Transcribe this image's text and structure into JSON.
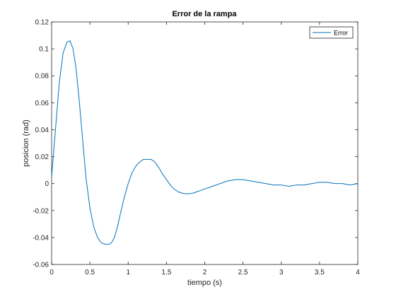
{
  "chart_data": {
    "type": "line",
    "title": "Error de la rampa",
    "xlabel": "tiempo (s)",
    "ylabel": "posicion (rad)",
    "xlim": [
      0,
      4
    ],
    "ylim": [
      -0.06,
      0.12
    ],
    "x_ticks": [
      0,
      0.5,
      1,
      1.5,
      2,
      2.5,
      3,
      3.5,
      4
    ],
    "x_tick_labels": [
      "0",
      "0.5",
      "1",
      "1.5",
      "2",
      "2.5",
      "3",
      "3.5",
      "4"
    ],
    "y_ticks": [
      -0.06,
      -0.04,
      -0.02,
      0,
      0.02,
      0.04,
      0.06,
      0.08,
      0.1,
      0.12
    ],
    "y_tick_labels": [
      "-0.06",
      "-0.04",
      "-0.02",
      "0",
      "0.02",
      "0.04",
      "0.06",
      "0.08",
      "0.1",
      "0.12"
    ],
    "grid": false,
    "legend_position": "top-right",
    "series": [
      {
        "name": "Error",
        "color": "#0072bd",
        "x": [
          0,
          0.05,
          0.1,
          0.15,
          0.2,
          0.24,
          0.28,
          0.32,
          0.36,
          0.4,
          0.45,
          0.5,
          0.55,
          0.6,
          0.65,
          0.7,
          0.75,
          0.78,
          0.82,
          0.86,
          0.9,
          0.95,
          1.0,
          1.05,
          1.1,
          1.15,
          1.2,
          1.25,
          1.3,
          1.35,
          1.4,
          1.45,
          1.5,
          1.55,
          1.6,
          1.65,
          1.7,
          1.75,
          1.8,
          1.85,
          1.9,
          1.95,
          2.0,
          2.1,
          2.2,
          2.3,
          2.4,
          2.5,
          2.6,
          2.7,
          2.8,
          2.9,
          3.0,
          3.1,
          3.2,
          3.3,
          3.4,
          3.5,
          3.6,
          3.7,
          3.8,
          3.9,
          4.0
        ],
        "y": [
          0.005,
          0.04,
          0.075,
          0.097,
          0.105,
          0.106,
          0.1,
          0.085,
          0.062,
          0.036,
          0.004,
          -0.018,
          -0.032,
          -0.04,
          -0.044,
          -0.045,
          -0.045,
          -0.044,
          -0.04,
          -0.032,
          -0.022,
          -0.01,
          0.0,
          0.008,
          0.013,
          0.016,
          0.018,
          0.018,
          0.018,
          0.016,
          0.012,
          0.007,
          0.003,
          -0.001,
          -0.004,
          -0.006,
          -0.007,
          -0.0075,
          -0.0075,
          -0.007,
          -0.006,
          -0.005,
          -0.004,
          -0.002,
          0.0,
          0.002,
          0.003,
          0.003,
          0.002,
          0.001,
          0.0,
          -0.001,
          -0.001,
          -0.002,
          -0.001,
          -0.001,
          0.0,
          0.001,
          0.001,
          0.0,
          0.0,
          -0.001,
          0.0
        ]
      }
    ]
  }
}
